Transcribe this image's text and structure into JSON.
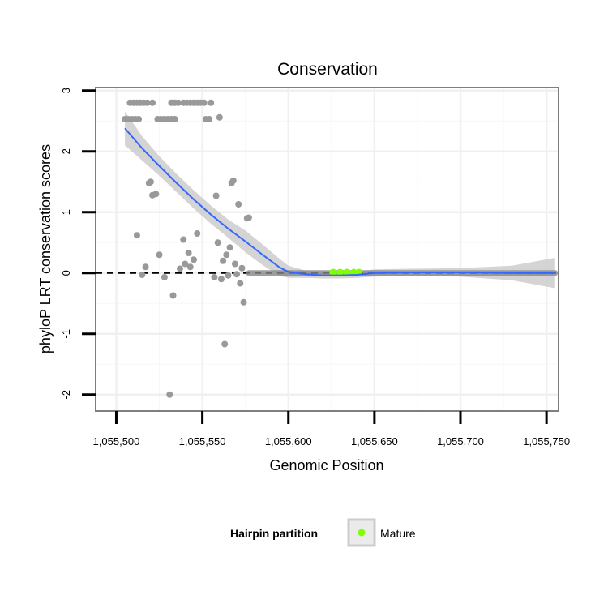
{
  "chart_data": {
    "type": "scatter",
    "title": "Conservation",
    "xlabel": "Genomic Position",
    "ylabel": "phyloP LRT conservation scores",
    "xlim": [
      1055488,
      1055757
    ],
    "ylim": [
      -2.27,
      3.05
    ],
    "x_ticks": [
      1055500,
      1055550,
      1055600,
      1055650,
      1055700,
      1055750
    ],
    "x_tick_labels": [
      "1,055,500",
      "1,055,550",
      "1,055,600",
      "1,055,650",
      "1,055,700",
      "1,055,750"
    ],
    "y_ticks": [
      -2,
      -1,
      0,
      1,
      2,
      3
    ],
    "y_tick_labels": [
      "-2",
      "-1",
      "0",
      "1",
      "2",
      "3"
    ],
    "grid": true,
    "reference_line": {
      "y": 0,
      "style": "dashed"
    },
    "legend": {
      "title": "Hairpin partition",
      "entries": [
        {
          "label": "Mature",
          "color": "#7fff00"
        }
      ],
      "position": "bottom"
    },
    "colors": {
      "points": "#999999",
      "line": "#3366ff",
      "band": "#cccccc",
      "mature": "#7fff00",
      "baseline_segment": "#888888"
    },
    "series": [
      {
        "name": "scores",
        "points": [
          [
            1055505,
            2.53
          ],
          [
            1055507,
            2.53
          ],
          [
            1055509,
            2.53
          ],
          [
            1055511,
            2.53
          ],
          [
            1055513,
            2.53
          ],
          [
            1055508,
            2.8
          ],
          [
            1055510,
            2.8
          ],
          [
            1055512,
            2.8
          ],
          [
            1055514,
            2.8
          ],
          [
            1055516,
            2.8
          ],
          [
            1055518,
            2.8
          ],
          [
            1055521,
            2.8
          ],
          [
            1055524,
            2.53
          ],
          [
            1055526,
            2.53
          ],
          [
            1055528,
            2.53
          ],
          [
            1055530,
            2.53
          ],
          [
            1055532,
            2.53
          ],
          [
            1055534,
            2.53
          ],
          [
            1055532,
            2.8
          ],
          [
            1055534,
            2.8
          ],
          [
            1055536,
            2.8
          ],
          [
            1055539,
            2.8
          ],
          [
            1055541,
            2.8
          ],
          [
            1055543,
            2.8
          ],
          [
            1055545,
            2.8
          ],
          [
            1055547,
            2.8
          ],
          [
            1055549,
            2.8
          ],
          [
            1055551,
            2.8
          ],
          [
            1055555,
            2.8
          ],
          [
            1055552,
            2.53
          ],
          [
            1055554,
            2.53
          ],
          [
            1055560,
            2.56
          ],
          [
            1055512,
            0.62
          ],
          [
            1055515,
            -0.03
          ],
          [
            1055517,
            0.1
          ],
          [
            1055519,
            1.48
          ],
          [
            1055520,
            1.5
          ],
          [
            1055521,
            1.28
          ],
          [
            1055523,
            1.3
          ],
          [
            1055525,
            0.3
          ],
          [
            1055528,
            -0.07
          ],
          [
            1055531,
            -2.0
          ],
          [
            1055533,
            -0.37
          ],
          [
            1055537,
            0.07
          ],
          [
            1055539,
            0.55
          ],
          [
            1055540,
            0.15
          ],
          [
            1055542,
            0.33
          ],
          [
            1055543,
            0.1
          ],
          [
            1055545,
            0.22
          ],
          [
            1055547,
            0.65
          ],
          [
            1055557,
            -0.07
          ],
          [
            1055558,
            1.27
          ],
          [
            1055559,
            0.5
          ],
          [
            1055561,
            -0.1
          ],
          [
            1055562,
            0.2
          ],
          [
            1055563,
            -1.17
          ],
          [
            1055564,
            0.3
          ],
          [
            1055565,
            -0.04
          ],
          [
            1055566,
            0.42
          ],
          [
            1055567,
            1.48
          ],
          [
            1055568,
            1.52
          ],
          [
            1055569,
            0.15
          ],
          [
            1055570,
            -0.02
          ],
          [
            1055571,
            1.13
          ],
          [
            1055572,
            -0.17
          ],
          [
            1055573,
            0.08
          ],
          [
            1055574,
            -0.48
          ],
          [
            1055576,
            0.9
          ],
          [
            1055577,
            0.91
          ]
        ],
        "mature_points": [
          [
            1055626,
            0.01
          ],
          [
            1055630,
            0.01
          ],
          [
            1055634,
            0.01
          ],
          [
            1055638,
            0.01
          ],
          [
            1055641,
            0.01
          ]
        ],
        "baseline_segment": {
          "x_start": 1055577,
          "x_end": 1055755,
          "y": 0
        },
        "smooth_fit": {
          "x": [
            1055505,
            1055515,
            1055525,
            1055535,
            1055545,
            1055555,
            1055565,
            1055575,
            1055585,
            1055595,
            1055600,
            1055610,
            1055620,
            1055630,
            1055640,
            1055650,
            1055670,
            1055700,
            1055730,
            1055755
          ],
          "y": [
            2.38,
            2.05,
            1.76,
            1.48,
            1.21,
            0.96,
            0.73,
            0.52,
            0.3,
            0.09,
            0.02,
            -0.02,
            -0.04,
            -0.04,
            -0.03,
            0.0,
            0.01,
            0.01,
            0.0,
            0.0
          ],
          "lower": [
            2.1,
            1.85,
            1.6,
            1.33,
            1.06,
            0.81,
            0.58,
            0.34,
            0.13,
            -0.05,
            -0.08,
            -0.08,
            -0.09,
            -0.09,
            -0.08,
            -0.06,
            -0.05,
            -0.06,
            -0.12,
            -0.25
          ],
          "upper": [
            2.66,
            2.25,
            1.92,
            1.63,
            1.36,
            1.11,
            0.88,
            0.7,
            0.47,
            0.23,
            0.12,
            0.04,
            0.01,
            0.01,
            0.02,
            0.06,
            0.07,
            0.08,
            0.12,
            0.25
          ]
        }
      }
    ]
  }
}
